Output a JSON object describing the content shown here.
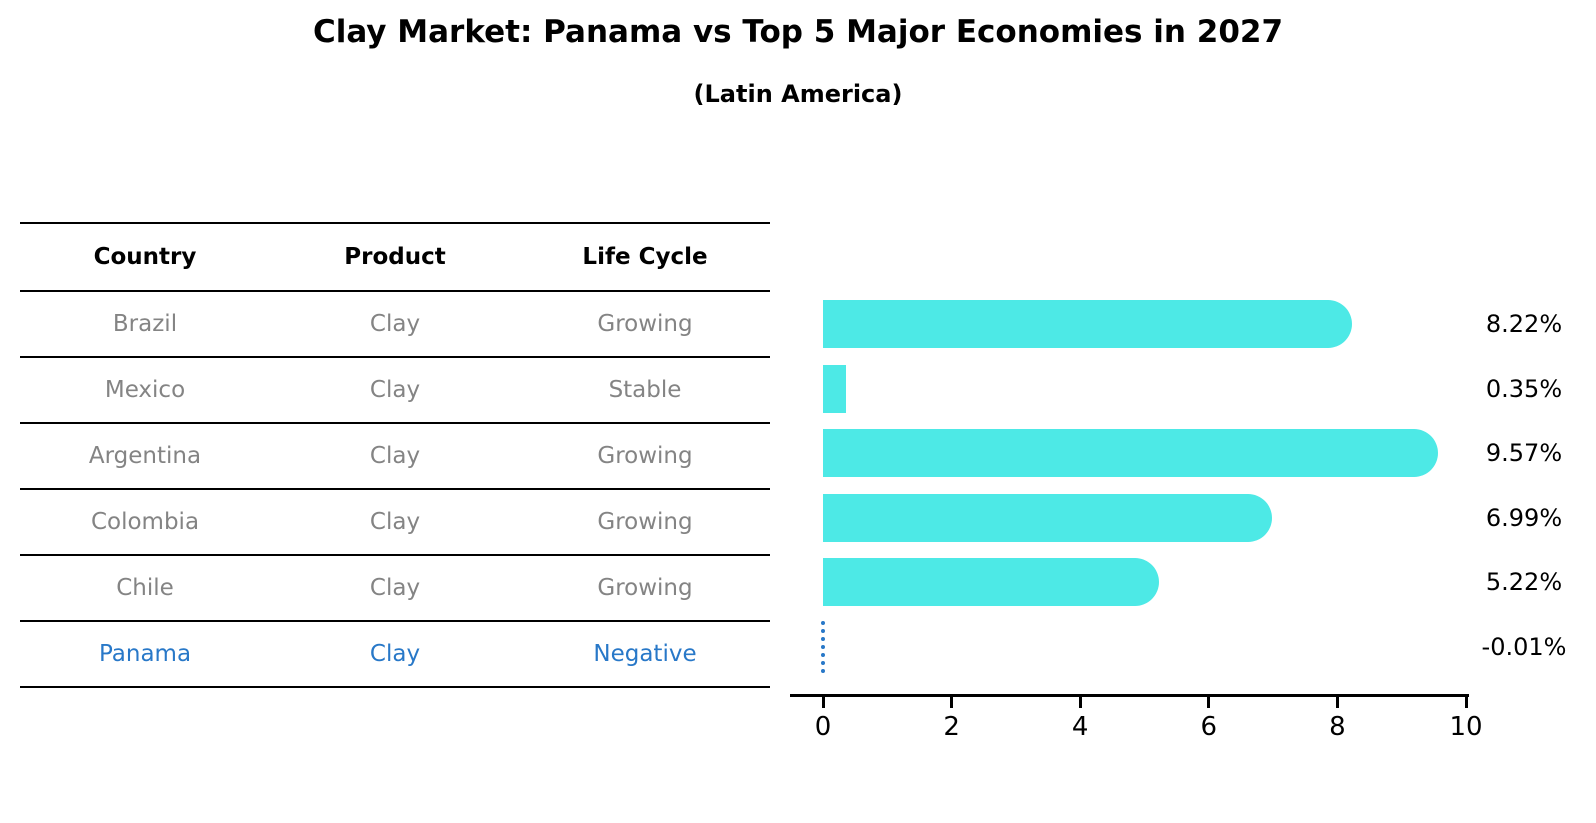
{
  "title": "Clay Market: Panama vs Top 5 Major Economies in 2027",
  "subtitle": "(Latin America)",
  "table": {
    "headers": [
      "Country",
      "Product",
      "Life Cycle"
    ],
    "rows": [
      {
        "country": "Brazil",
        "product": "Clay",
        "life_cycle": "Growing",
        "highlight": false
      },
      {
        "country": "Mexico",
        "product": "Clay",
        "life_cycle": "Stable",
        "highlight": false
      },
      {
        "country": "Argentina",
        "product": "Clay",
        "life_cycle": "Growing",
        "highlight": false
      },
      {
        "country": "Colombia",
        "product": "Clay",
        "life_cycle": "Growing",
        "highlight": false
      },
      {
        "country": "Chile",
        "product": "Clay",
        "life_cycle": "Growing",
        "highlight": false
      },
      {
        "country": "Panama",
        "product": "Clay",
        "life_cycle": "Negative",
        "highlight": true
      }
    ]
  },
  "chart_data": {
    "type": "bar",
    "orientation": "horizontal",
    "categories": [
      "Brazil",
      "Mexico",
      "Argentina",
      "Colombia",
      "Chile",
      "Panama"
    ],
    "values": [
      8.22,
      0.35,
      9.57,
      6.99,
      5.22,
      -0.01
    ],
    "value_labels": [
      "8.22%",
      "0.35%",
      "9.57%",
      "6.99%",
      "5.22%",
      "-0.01%"
    ],
    "title": "Clay Market: Panama vs Top 5 Major Economies in 2027",
    "subtitle": "(Latin America)",
    "xlabel": "",
    "ylabel": "",
    "xlim": [
      0,
      10
    ],
    "xticks": [
      "0",
      "2",
      "4",
      "6",
      "8",
      "10"
    ],
    "grid": false,
    "legend": "none",
    "highlight_index": 5,
    "highlight_style": "dotted-zero-line"
  },
  "colors": {
    "bar": "#4DE9E6",
    "highlight": "#2878C8",
    "table_text": "#848484",
    "header_text": "#000000",
    "value_label": "#000000",
    "axis": "#000000",
    "background": "#ffffff"
  }
}
